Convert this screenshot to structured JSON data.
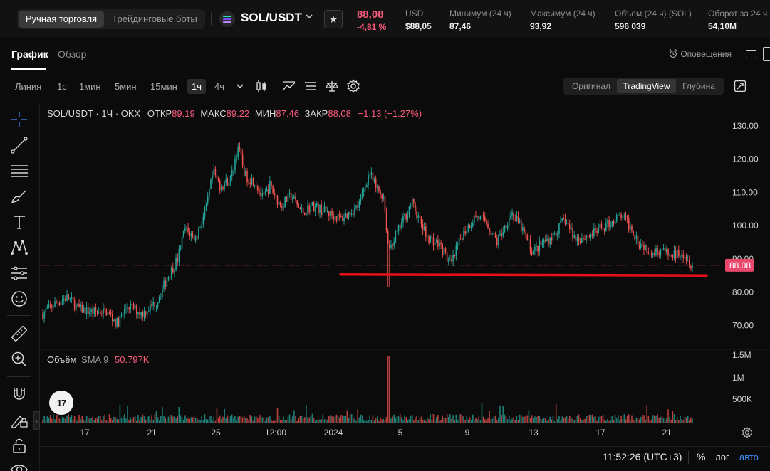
{
  "topbar": {
    "modes": [
      {
        "label": "Ручная торговля",
        "active": true
      },
      {
        "label": "Трейдинговые боты",
        "active": false
      }
    ],
    "pair": "SOL/USDT",
    "last_price": "88,08",
    "change_pct": "-4,81 %",
    "stats": [
      {
        "label": "USD",
        "value": "$88,05"
      },
      {
        "label": "Минимум (24 ч)",
        "value": "87,46"
      },
      {
        "label": "Максимум (24 ч)",
        "value": "93,92"
      },
      {
        "label": "Объем (24 ч) (SOL)",
        "value": "596 039"
      },
      {
        "label": "Оборот за 24 ч",
        "value": "54,10M"
      }
    ]
  },
  "tabs": {
    "chart": "График",
    "overview": "Обзор",
    "alerts": "Оповещения"
  },
  "toolbar": {
    "timeframes": [
      {
        "label": "Линия",
        "active": false
      },
      {
        "label": "1с",
        "active": false
      },
      {
        "label": "1мин",
        "active": false
      },
      {
        "label": "5мин",
        "active": false
      },
      {
        "label": "15мин",
        "active": false
      },
      {
        "label": "1ч",
        "active": true
      },
      {
        "label": "4ч",
        "active": false
      }
    ],
    "views": [
      {
        "label": "Оригинал",
        "active": false
      },
      {
        "label": "TradingView",
        "active": true
      },
      {
        "label": "Глубина",
        "active": false
      }
    ]
  },
  "legend": {
    "symbol": "SOL/USDT · 1Ч · OKX",
    "open_label": "ОТКР",
    "open": "89.19",
    "high_label": "МАКС",
    "high": "89.22",
    "low_label": "МИН",
    "low": "87.46",
    "close_label": "ЗАКР",
    "close": "88.08",
    "change": "−1.13 (−1.27%)"
  },
  "volume_legend": {
    "label": "Объём",
    "sma": "SMA 9",
    "value": "50.797K"
  },
  "price_tag": "88.08",
  "logo_text": "17",
  "status": {
    "clock": "11:52:26 (UTC+3)",
    "percent": "%",
    "log": "лог",
    "auto": "авто"
  },
  "colors": {
    "up": "#26a69a",
    "down": "#ef5350",
    "price_accent": "#f5597a",
    "support_line": "#e8101a",
    "auto_link": "#3f8ef7"
  },
  "icons": [
    "crosshair-icon",
    "trend-line-icon",
    "horizontal-lines-icon",
    "brush-icon",
    "text-icon",
    "pattern-icon",
    "prediction-icon",
    "emoji-icon",
    "ruler-icon",
    "zoom-icon",
    "magnet-icon",
    "lock-drawing-icon",
    "lock-icon",
    "eye-icon",
    "candles-icon",
    "indicators-icon",
    "templates-icon",
    "compare-icon",
    "settings-icon",
    "expand-icon",
    "alarm-icon",
    "star-icon"
  ],
  "chart_data": {
    "type": "candlestick",
    "y_axis_ticks": [
      "130.00",
      "120.00",
      "110.00",
      "100.00",
      "90.00",
      "80.00",
      "70.00"
    ],
    "y_range": [
      63,
      133
    ],
    "volume_axis_ticks": [
      "1.5M",
      "1M",
      "500K"
    ],
    "x_axis_ticks": [
      "17",
      "21",
      "25",
      "12:00",
      "2024",
      "5",
      "9",
      "13",
      "17",
      "21"
    ],
    "close_path": [
      [
        0,
        73.5
      ],
      [
        0.02,
        77
      ],
      [
        0.035,
        78.5
      ],
      [
        0.05,
        75
      ],
      [
        0.07,
        74
      ],
      [
        0.09,
        74.2
      ],
      [
        0.105,
        70.5
      ],
      [
        0.12,
        76
      ],
      [
        0.14,
        73.5
      ],
      [
        0.16,
        77
      ],
      [
        0.175,
        84
      ],
      [
        0.19,
        90
      ],
      [
        0.2,
        99
      ],
      [
        0.215,
        96
      ],
      [
        0.23,
        105
      ],
      [
        0.24,
        116
      ],
      [
        0.25,
        112
      ],
      [
        0.265,
        114
      ],
      [
        0.275,
        124
      ],
      [
        0.285,
        115
      ],
      [
        0.3,
        113
      ],
      [
        0.31,
        108
      ],
      [
        0.32,
        112
      ],
      [
        0.335,
        106
      ],
      [
        0.35,
        109
      ],
      [
        0.365,
        104
      ],
      [
        0.38,
        106
      ],
      [
        0.4,
        104
      ],
      [
        0.42,
        102
      ],
      [
        0.445,
        106
      ],
      [
        0.46,
        116
      ],
      [
        0.47,
        111
      ],
      [
        0.48,
        109
      ],
      [
        0.487,
        93
      ],
      [
        0.495,
        96
      ],
      [
        0.52,
        107
      ],
      [
        0.54,
        97
      ],
      [
        0.56,
        94
      ],
      [
        0.575,
        88
      ],
      [
        0.59,
        97
      ],
      [
        0.61,
        103
      ],
      [
        0.625,
        101
      ],
      [
        0.64,
        95
      ],
      [
        0.66,
        104
      ],
      [
        0.675,
        99
      ],
      [
        0.69,
        92
      ],
      [
        0.705,
        95
      ],
      [
        0.72,
        97
      ],
      [
        0.735,
        102
      ],
      [
        0.75,
        96
      ],
      [
        0.77,
        97
      ],
      [
        0.8,
        101
      ],
      [
        0.815,
        103
      ],
      [
        0.83,
        99
      ],
      [
        0.84,
        95
      ],
      [
        0.86,
        92
      ],
      [
        0.87,
        93
      ],
      [
        0.885,
        90.5
      ],
      [
        0.9,
        92.5
      ],
      [
        0.915,
        88.08
      ]
    ],
    "last_price": 88.08,
    "support_level": 85,
    "volume_spike_at": 0.487
  }
}
